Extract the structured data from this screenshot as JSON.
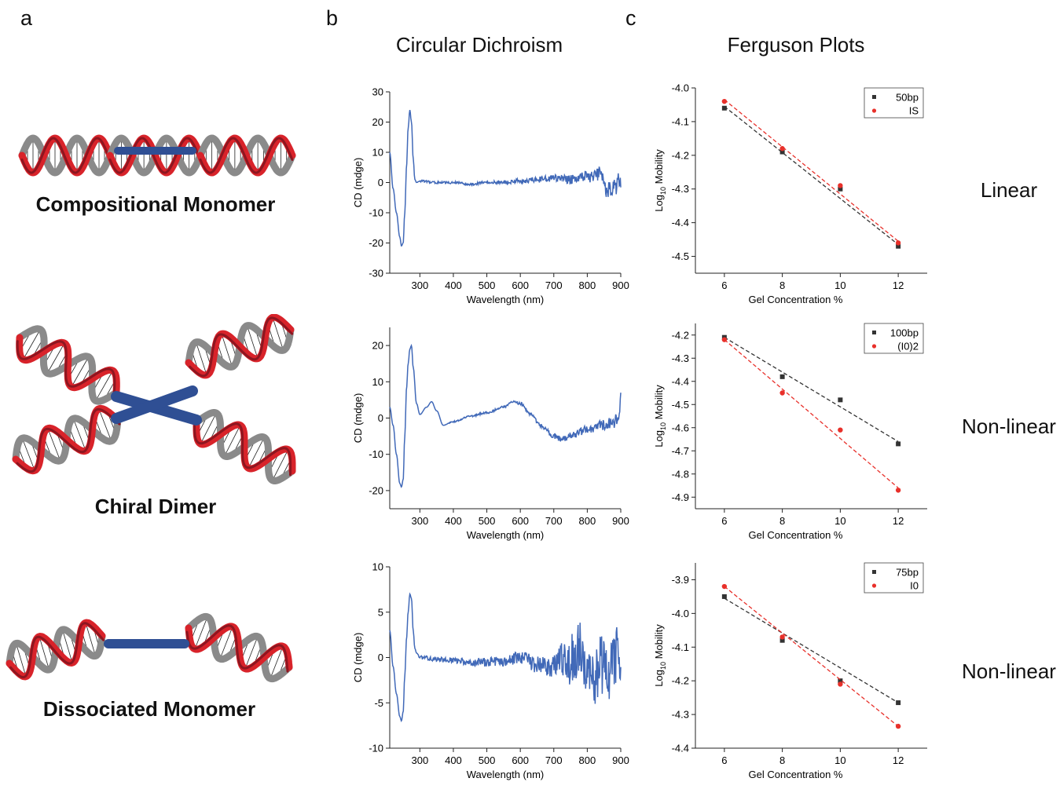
{
  "panel_letters": [
    "a",
    "b",
    "c"
  ],
  "column_titles": {
    "b": "Circular Dichroism",
    "c": "Ferguson Plots"
  },
  "structures": [
    {
      "label": "Compositional Monomer"
    },
    {
      "label": "Chiral Dimer"
    },
    {
      "label": "Dissociated Monomer"
    }
  ],
  "classifications": [
    "Linear",
    "Non-linear",
    "Non-linear"
  ],
  "colors": {
    "cd_line": "#4169b8",
    "dna_red": "#d8232a",
    "dna_darkred": "#8e1620",
    "dna_gray": "#8a8a8a",
    "bar_blue": "#2f4f94",
    "series_black": "#333333",
    "series_red": "#e8302a"
  },
  "chart_data": [
    {
      "type": "line",
      "panel": "b",
      "row": 1,
      "xlabel": "Wavelength (nm)",
      "ylabel": "CD (mdge)",
      "xlim": [
        210,
        900
      ],
      "ylim": [
        -30,
        30
      ],
      "xticks": [
        300,
        400,
        500,
        600,
        700,
        800,
        900
      ],
      "yticks": [
        -30,
        -20,
        -10,
        0,
        10,
        20,
        30
      ],
      "series": [
        {
          "x": [
            210,
            220,
            230,
            240,
            245,
            250,
            255,
            260,
            265,
            270,
            275,
            280,
            285,
            290,
            300,
            350,
            400,
            450,
            500,
            550,
            600,
            650,
            700,
            750,
            800,
            820,
            840,
            860,
            880,
            900
          ],
          "y": [
            10,
            -2,
            -10,
            -18,
            -21,
            -20,
            -10,
            5,
            18,
            24,
            20,
            8,
            1,
            0,
            0.5,
            0,
            0,
            -0.5,
            0,
            0,
            0.5,
            1,
            1.5,
            1,
            2,
            2,
            3,
            -3,
            -2,
            1
          ],
          "noise": [
            0,
            0,
            0,
            0,
            0,
            0,
            0,
            0,
            0,
            0,
            0,
            0,
            0,
            0,
            0.3,
            0.4,
            0.4,
            0.4,
            0.5,
            0.6,
            0.8,
            1,
            1.2,
            1.5,
            1.8,
            2.2,
            2.5,
            3,
            3,
            3
          ]
        }
      ]
    },
    {
      "type": "line",
      "panel": "b",
      "row": 2,
      "xlabel": "Wavelength (nm)",
      "ylabel": "CD (mdge)",
      "xlim": [
        210,
        900
      ],
      "ylim": [
        -25,
        25
      ],
      "xticks": [
        300,
        400,
        500,
        600,
        700,
        800,
        900
      ],
      "yticks": [
        -20,
        -10,
        0,
        10,
        20
      ],
      "series": [
        {
          "x": [
            210,
            220,
            230,
            240,
            245,
            250,
            255,
            260,
            265,
            270,
            275,
            280,
            290,
            300,
            320,
            335,
            350,
            370,
            400,
            450,
            500,
            550,
            580,
            600,
            630,
            660,
            700,
            720,
            750,
            800,
            850,
            880,
            895,
            900
          ],
          "y": [
            3,
            -2,
            -10,
            -18,
            -19,
            -17,
            -5,
            8,
            15,
            19,
            20,
            14,
            4,
            1,
            3,
            4.5,
            2,
            -2,
            -1,
            0.5,
            1.5,
            3,
            4.5,
            4,
            1,
            -2,
            -5,
            -6,
            -5,
            -3,
            -2,
            -1,
            0,
            7
          ],
          "noise": [
            0,
            0,
            0,
            0,
            0,
            0,
            0,
            0,
            0,
            0,
            0,
            0,
            0,
            0,
            0,
            0,
            0,
            0,
            0.2,
            0.2,
            0.3,
            0.3,
            0.3,
            0.4,
            0.5,
            0.6,
            0.8,
            1,
            1,
            1.2,
            1.5,
            1.8,
            2,
            0
          ]
        }
      ]
    },
    {
      "type": "line",
      "panel": "b",
      "row": 3,
      "xlabel": "Wavelength (nm)",
      "ylabel": "CD (mdge)",
      "xlim": [
        210,
        900
      ],
      "ylim": [
        -10,
        10
      ],
      "xticks": [
        300,
        400,
        500,
        600,
        700,
        800,
        900
      ],
      "yticks": [
        -10,
        -5,
        0,
        5,
        10
      ],
      "series": [
        {
          "x": [
            210,
            220,
            230,
            240,
            245,
            250,
            255,
            260,
            265,
            270,
            275,
            280,
            285,
            290,
            300,
            350,
            400,
            450,
            500,
            550,
            600,
            650,
            700,
            720,
            740,
            760,
            780,
            800,
            820,
            840,
            860,
            880,
            900
          ],
          "y": [
            3,
            -1,
            -4,
            -6.5,
            -7,
            -6,
            -2,
            2,
            5,
            7,
            6.5,
            3,
            1,
            0.5,
            0,
            -0.2,
            -0.3,
            -0.5,
            -0.5,
            -0.4,
            0,
            -0.8,
            -1,
            0,
            -1,
            0,
            1,
            -1,
            -2,
            -1,
            -2,
            0,
            0
          ],
          "noise": [
            0,
            0,
            0,
            0,
            0,
            0,
            0,
            0,
            0,
            0,
            0,
            0,
            0,
            0,
            0.2,
            0.3,
            0.3,
            0.4,
            0.5,
            0.6,
            0.7,
            1,
            1.2,
            1.8,
            2.4,
            3,
            3.2,
            3.5,
            3.6,
            3.6,
            3.5,
            3.4,
            3.3
          ]
        }
      ]
    },
    {
      "type": "scatter",
      "panel": "c",
      "row": 1,
      "xlabel": "Gel Concentration %",
      "ylabel": "Log10 Mobility",
      "xlim": [
        5,
        13
      ],
      "ylim": [
        -4.55,
        -4.0
      ],
      "xticks": [
        6,
        8,
        10,
        12
      ],
      "yticks": [
        -4.0,
        -4.1,
        -4.2,
        -4.3,
        -4.4,
        -4.5
      ],
      "legend": "top-right",
      "series": [
        {
          "name": "50bp",
          "x": [
            6,
            8,
            10,
            12
          ],
          "y": [
            -4.06,
            -4.19,
            -4.3,
            -4.47
          ],
          "fit": [
            [
              6,
              -4.055
            ],
            [
              12,
              -4.465
            ]
          ]
        },
        {
          "name": "IS",
          "x": [
            6,
            8,
            10,
            12
          ],
          "y": [
            -4.04,
            -4.18,
            -4.29,
            -4.46
          ],
          "fit": [
            [
              6,
              -4.035
            ],
            [
              12,
              -4.455
            ]
          ]
        }
      ]
    },
    {
      "type": "scatter",
      "panel": "c",
      "row": 2,
      "xlabel": "Gel Concentration %",
      "ylabel": "Log10 Mobility",
      "xlim": [
        5,
        13
      ],
      "ylim": [
        -4.95,
        -4.15
      ],
      "xticks": [
        6,
        8,
        10,
        12
      ],
      "yticks": [
        -4.2,
        -4.3,
        -4.4,
        -4.5,
        -4.6,
        -4.7,
        -4.8,
        -4.9
      ],
      "legend": "top-right",
      "series": [
        {
          "name": "100bp",
          "x": [
            6,
            8,
            10,
            12
          ],
          "y": [
            -4.21,
            -4.38,
            -4.48,
            -4.67
          ],
          "fit": [
            [
              6,
              -4.21
            ],
            [
              12,
              -4.66
            ]
          ]
        },
        {
          "name": "(I0)2",
          "x": [
            6,
            8,
            10,
            12
          ],
          "y": [
            -4.22,
            -4.45,
            -4.61,
            -4.87
          ],
          "fit": [
            [
              6,
              -4.22
            ],
            [
              12,
              -4.86
            ]
          ]
        }
      ]
    },
    {
      "type": "scatter",
      "panel": "c",
      "row": 3,
      "xlabel": "Gel Concentration %",
      "ylabel": "Log10 Mobility",
      "xlim": [
        5,
        13
      ],
      "ylim": [
        -4.4,
        -3.85
      ],
      "xticks": [
        6,
        8,
        10,
        12
      ],
      "yticks": [
        -3.9,
        -4.0,
        -4.1,
        -4.2,
        -4.3,
        -4.4
      ],
      "legend": "top-right",
      "series": [
        {
          "name": "75bp",
          "x": [
            6,
            8,
            10,
            12
          ],
          "y": [
            -3.95,
            -4.08,
            -4.2,
            -4.265
          ],
          "fit": [
            [
              6,
              -3.955
            ],
            [
              12,
              -4.265
            ]
          ]
        },
        {
          "name": "I0",
          "x": [
            6,
            8,
            10,
            12
          ],
          "y": [
            -3.92,
            -4.07,
            -4.21,
            -4.335
          ],
          "fit": [
            [
              6,
              -3.92
            ],
            [
              12,
              -4.335
            ]
          ]
        }
      ]
    }
  ]
}
